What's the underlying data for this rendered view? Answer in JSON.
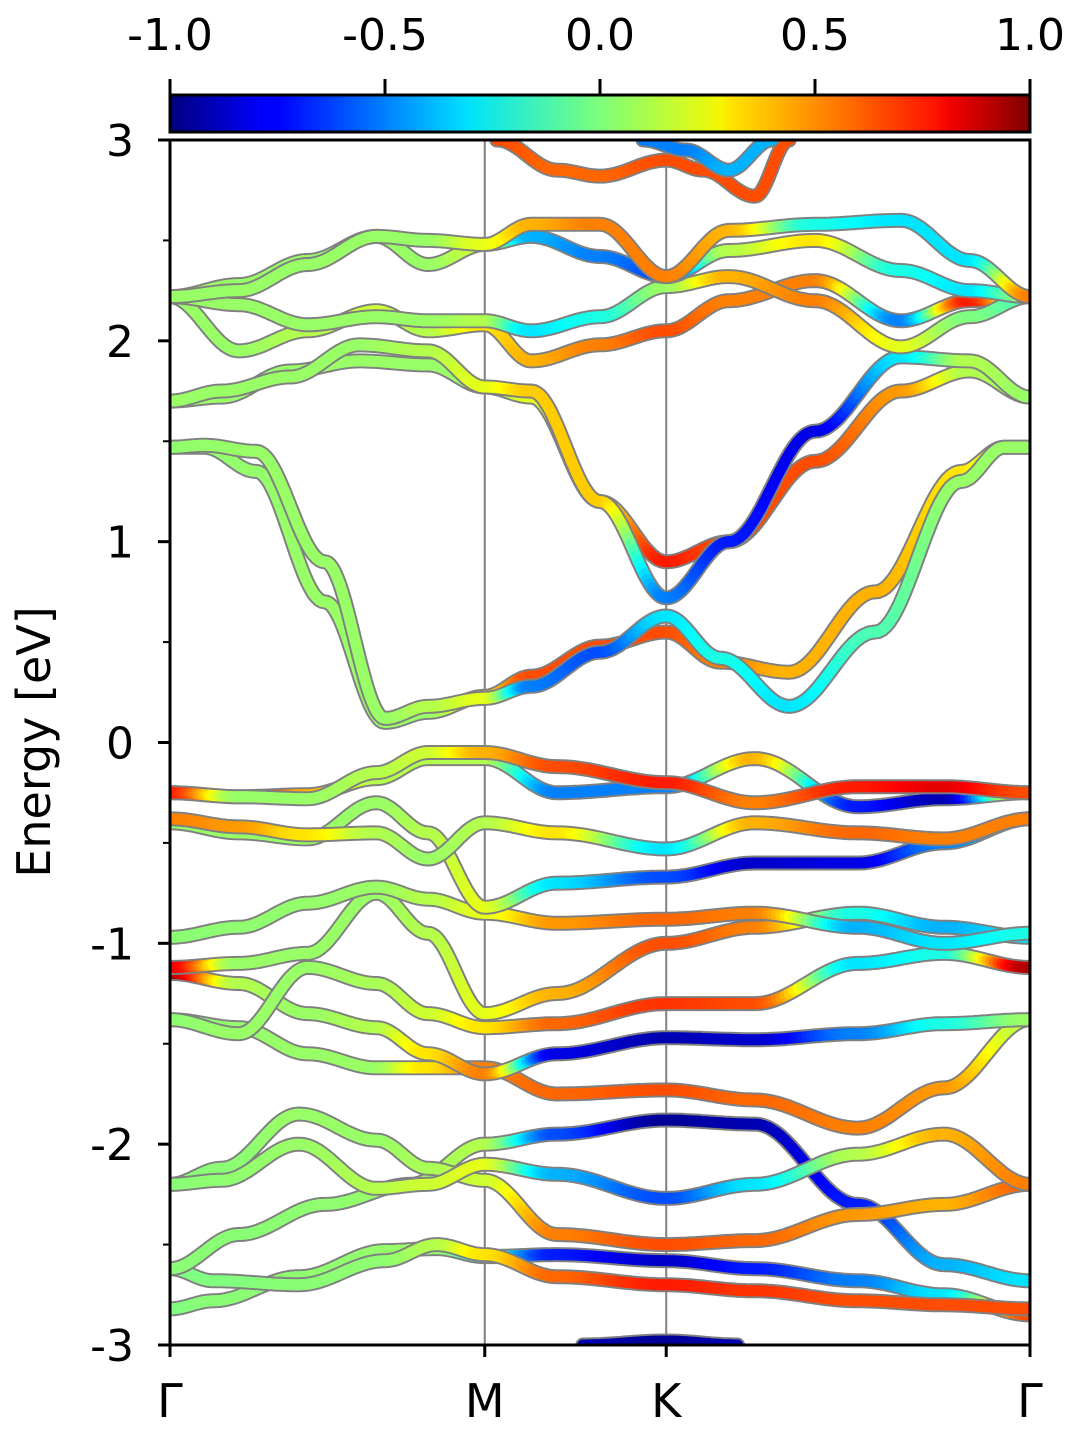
{
  "chart_data": {
    "type": "line",
    "ylabel": "Energy [eV]",
    "ylim": [
      -3,
      3
    ],
    "y_major_ticks": [
      -3,
      -2,
      -1,
      0,
      1,
      2,
      3
    ],
    "y_tick_labels": [
      "-3",
      "-2",
      "-1",
      "0",
      "1",
      "2",
      "3"
    ],
    "y_minor_ticks": [
      -2.5,
      -1.5,
      -0.5,
      0.5,
      1.5,
      2.5
    ],
    "x_ticks": [
      {
        "label": "Γ",
        "pos": 0.0
      },
      {
        "label": "M",
        "pos": 0.366
      },
      {
        "label": "K",
        "pos": 0.577
      },
      {
        "label": "Γ",
        "pos": 1.0
      }
    ],
    "colorbar": {
      "colormap": "jet",
      "range": [
        -1.0,
        1.0
      ],
      "ticks": [
        -1.0,
        -0.5,
        0.0,
        0.5,
        1.0
      ],
      "tick_labels": [
        "-1.0",
        "-0.5",
        "0.0",
        "0.5",
        "1.0"
      ]
    },
    "colors": {
      "band_outline": "#808080",
      "symmetry_line": "#808080"
    },
    "series": [
      {
        "x": [
          0,
          0.05,
          0.15,
          0.25,
          0.31,
          0.366,
          0.45,
          0.577,
          0.68,
          0.8,
          0.9,
          1.0
        ],
        "y": [
          -2.82,
          -2.78,
          -2.66,
          -2.53,
          -2.52,
          -2.56,
          -2.55,
          -2.58,
          -2.62,
          -2.68,
          -2.75,
          -2.85
        ],
        "c": [
          0.0,
          0.02,
          0.03,
          0.04,
          0.05,
          -0.2,
          -0.7,
          -0.85,
          -0.7,
          -0.5,
          -0.3,
          0.6
        ]
      },
      {
        "x": [
          0,
          0.05,
          0.15,
          0.25,
          0.31,
          0.366,
          0.45,
          0.577,
          0.68,
          0.8,
          0.9,
          1.0
        ],
        "y": [
          -2.62,
          -2.68,
          -2.7,
          -2.58,
          -2.5,
          -2.55,
          -2.66,
          -2.7,
          -2.73,
          -2.78,
          -2.8,
          -2.82
        ],
        "c": [
          0.0,
          0.0,
          0.02,
          0.03,
          0.1,
          0.3,
          0.55,
          0.7,
          0.65,
          0.6,
          0.6,
          0.6
        ]
      },
      {
        "x": [
          0,
          0.08,
          0.18,
          0.28,
          0.366,
          0.45,
          0.577,
          0.68,
          0.8,
          0.9,
          1.0
        ],
        "y": [
          -2.62,
          -2.45,
          -2.3,
          -2.2,
          -2.0,
          -1.95,
          -1.88,
          -1.9,
          -2.3,
          -2.6,
          -2.68
        ],
        "c": [
          0.02,
          0.02,
          0.03,
          0.05,
          0.1,
          -0.6,
          -0.95,
          -0.9,
          -0.7,
          -0.4,
          -0.3
        ]
      },
      {
        "x": [
          0,
          0.06,
          0.15,
          0.24,
          0.3,
          0.366,
          0.45,
          0.577,
          0.68,
          0.8,
          0.9,
          1.0
        ],
        "y": [
          -2.2,
          -2.12,
          -1.85,
          -1.98,
          -2.12,
          -2.18,
          -2.45,
          -2.5,
          -2.48,
          -2.35,
          -2.3,
          -2.2
        ],
        "c": [
          0.02,
          0.02,
          0.05,
          0.05,
          0.08,
          0.15,
          0.5,
          0.6,
          0.55,
          0.45,
          0.4,
          0.55
        ]
      },
      {
        "x": [
          0,
          0.06,
          0.15,
          0.24,
          0.3,
          0.366,
          0.45,
          0.577,
          0.68,
          0.8,
          0.9,
          1.0
        ],
        "y": [
          -2.2,
          -2.18,
          -2.0,
          -2.22,
          -2.2,
          -2.1,
          -2.15,
          -2.27,
          -2.2,
          -2.05,
          -1.95,
          -2.2
        ],
        "c": [
          0.02,
          0.03,
          0.05,
          0.1,
          0.15,
          0.2,
          -0.4,
          -0.6,
          -0.3,
          0.1,
          0.4,
          0.5
        ]
      },
      {
        "x": [
          0,
          0.08,
          0.16,
          0.24,
          0.3,
          0.366,
          0.45,
          0.577,
          0.68,
          0.8,
          0.9,
          1.0
        ],
        "y": [
          -1.38,
          -1.42,
          -1.55,
          -1.62,
          -1.62,
          -1.62,
          -1.75,
          -1.73,
          -1.78,
          -1.92,
          -1.72,
          -1.38
        ],
        "c": [
          0.03,
          0.04,
          0.05,
          0.05,
          0.3,
          0.5,
          0.55,
          0.6,
          0.55,
          0.5,
          0.45,
          0.1
        ]
      },
      {
        "x": [
          0,
          0.08,
          0.16,
          0.24,
          0.3,
          0.366,
          0.45,
          0.577,
          0.68,
          0.8,
          0.9,
          1.0
        ],
        "y": [
          -1.15,
          -1.2,
          -1.35,
          -1.42,
          -1.55,
          -1.65,
          -1.55,
          -1.47,
          -1.48,
          -1.45,
          -1.4,
          -1.38
        ],
        "c": [
          0.9,
          0.1,
          0.05,
          0.1,
          0.3,
          0.5,
          -0.8,
          -0.9,
          -0.85,
          -0.5,
          -0.2,
          0.05
        ]
      },
      {
        "x": [
          0,
          0.08,
          0.16,
          0.24,
          0.3,
          0.366,
          0.45,
          0.577,
          0.68,
          0.8,
          0.9,
          1.0
        ],
        "y": [
          -1.38,
          -1.45,
          -1.12,
          -1.2,
          -1.35,
          -1.42,
          -1.4,
          -1.3,
          -1.3,
          -1.1,
          -1.05,
          -1.12
        ],
        "c": [
          0.03,
          0.05,
          0.05,
          0.08,
          0.15,
          0.3,
          0.55,
          0.65,
          0.6,
          -0.3,
          -0.2,
          0.9
        ]
      },
      {
        "x": [
          0,
          0.08,
          0.16,
          0.24,
          0.3,
          0.366,
          0.45,
          0.577,
          0.68,
          0.8,
          0.9,
          1.0
        ],
        "y": [
          -1.12,
          -1.1,
          -1.05,
          -0.75,
          -0.95,
          -1.35,
          -1.25,
          -1.0,
          -0.92,
          -0.85,
          -0.92,
          -0.97
        ],
        "c": [
          0.8,
          0.05,
          0.05,
          0.05,
          0.1,
          0.2,
          0.4,
          0.6,
          0.5,
          -0.2,
          -0.4,
          -0.3
        ]
      },
      {
        "x": [
          0,
          0.08,
          0.16,
          0.24,
          0.3,
          0.366,
          0.45,
          0.577,
          0.68,
          0.8,
          0.9,
          1.0
        ],
        "y": [
          -0.97,
          -0.92,
          -0.8,
          -0.72,
          -0.78,
          -0.85,
          -0.9,
          -0.88,
          -0.85,
          -0.92,
          -1.0,
          -0.95
        ],
        "c": [
          0.02,
          0.03,
          0.04,
          0.05,
          0.1,
          0.2,
          0.45,
          0.55,
          0.5,
          -0.4,
          -0.3,
          -0.2
        ]
      },
      {
        "x": [
          0,
          0.08,
          0.16,
          0.24,
          0.3,
          0.366,
          0.45,
          0.577,
          0.68,
          0.8,
          0.9,
          1.0
        ],
        "y": [
          -0.4,
          -0.45,
          -0.48,
          -0.3,
          -0.45,
          -0.82,
          -0.7,
          -0.67,
          -0.6,
          -0.6,
          -0.5,
          -0.38
        ],
        "c": [
          0.04,
          0.05,
          0.05,
          0.05,
          0.1,
          0.2,
          -0.3,
          -0.6,
          -0.85,
          -0.8,
          -0.5,
          -0.3
        ]
      },
      {
        "x": [
          0,
          0.08,
          0.16,
          0.24,
          0.3,
          0.366,
          0.45,
          0.577,
          0.68,
          0.8,
          0.9,
          1.0
        ],
        "y": [
          -0.38,
          -0.42,
          -0.46,
          -0.45,
          -0.58,
          -0.4,
          -0.45,
          -0.53,
          -0.4,
          -0.45,
          -0.48,
          -0.38
        ],
        "c": [
          0.5,
          0.45,
          0.3,
          0.1,
          0.05,
          0.1,
          0.3,
          -0.3,
          0.4,
          0.55,
          0.5,
          0.5
        ]
      },
      {
        "x": [
          0,
          0.08,
          0.16,
          0.24,
          0.3,
          0.366,
          0.45,
          0.577,
          0.68,
          0.8,
          0.9,
          1.0
        ],
        "y": [
          -0.25,
          -0.27,
          -0.26,
          -0.18,
          -0.08,
          -0.08,
          -0.25,
          -0.22,
          -0.08,
          -0.32,
          -0.28,
          -0.25
        ],
        "c": [
          0.8,
          0.9,
          0.4,
          0.1,
          0.1,
          0.1,
          -0.5,
          -0.5,
          0.4,
          -0.7,
          -0.9,
          0.4
        ]
      },
      {
        "x": [
          0,
          0.08,
          0.16,
          0.24,
          0.3,
          0.366,
          0.45,
          0.577,
          0.68,
          0.8,
          0.9,
          1.0
        ],
        "y": [
          -0.25,
          -0.27,
          -0.28,
          -0.15,
          -0.05,
          -0.05,
          -0.12,
          -0.2,
          -0.3,
          -0.22,
          -0.22,
          -0.25
        ],
        "c": [
          0.7,
          0.05,
          0.05,
          0.1,
          0.15,
          0.4,
          0.6,
          0.7,
          0.5,
          0.7,
          0.8,
          0.6
        ]
      },
      {
        "x": [
          0,
          0.04,
          0.1,
          0.18,
          0.25,
          0.3,
          0.366,
          0.42,
          0.5,
          0.577,
          0.64,
          0.72,
          0.82,
          0.92,
          0.97,
          1.0
        ],
        "y": [
          1.47,
          1.47,
          1.35,
          0.7,
          0.1,
          0.15,
          0.23,
          0.33,
          0.48,
          0.55,
          0.4,
          0.35,
          0.75,
          1.35,
          1.47,
          1.47
        ],
        "c": [
          0.03,
          0.03,
          0.04,
          0.05,
          0.05,
          0.05,
          0.3,
          0.6,
          0.6,
          0.6,
          0.5,
          0.4,
          0.4,
          0.3,
          0.1,
          0.05
        ]
      },
      {
        "x": [
          0,
          0.04,
          0.1,
          0.18,
          0.25,
          0.3,
          0.366,
          0.42,
          0.5,
          0.577,
          0.64,
          0.72,
          0.82,
          0.92,
          0.97,
          1.0
        ],
        "y": [
          1.47,
          1.48,
          1.45,
          0.9,
          0.12,
          0.18,
          0.22,
          0.28,
          0.45,
          0.63,
          0.42,
          0.18,
          0.55,
          1.3,
          1.47,
          1.47
        ],
        "c": [
          0.03,
          0.04,
          0.05,
          0.05,
          0.05,
          0.1,
          0.2,
          -0.5,
          -0.6,
          -0.3,
          -0.2,
          -0.3,
          -0.1,
          0.05,
          0.05,
          0.05
        ]
      },
      {
        "x": [
          0,
          0.06,
          0.14,
          0.22,
          0.3,
          0.366,
          0.42,
          0.5,
          0.577,
          0.65,
          0.75,
          0.85,
          0.93,
          1.0
        ],
        "y": [
          1.7,
          1.72,
          1.85,
          1.9,
          1.88,
          1.77,
          1.72,
          1.2,
          0.9,
          1.0,
          1.4,
          1.75,
          1.85,
          1.72
        ],
        "c": [
          0.05,
          0.05,
          0.05,
          0.05,
          0.05,
          0.05,
          0.2,
          0.3,
          0.7,
          0.6,
          0.6,
          0.45,
          0.1,
          0.05
        ]
      },
      {
        "x": [
          0,
          0.06,
          0.14,
          0.22,
          0.3,
          0.366,
          0.42,
          0.5,
          0.577,
          0.65,
          0.75,
          0.85,
          0.93,
          1.0
        ],
        "y": [
          1.7,
          1.75,
          1.82,
          1.98,
          1.95,
          1.77,
          1.75,
          1.2,
          0.72,
          1.0,
          1.55,
          1.92,
          1.9,
          1.72
        ],
        "c": [
          0.05,
          0.05,
          0.05,
          0.05,
          0.1,
          0.2,
          0.35,
          0.35,
          -0.5,
          -0.7,
          -0.8,
          -0.3,
          0.1,
          0.05
        ]
      },
      {
        "x": [
          0,
          0.08,
          0.16,
          0.24,
          0.3,
          0.366,
          0.42,
          0.5,
          0.577,
          0.65,
          0.75,
          0.85,
          0.93,
          1.0
        ],
        "y": [
          2.22,
          1.95,
          2.05,
          2.15,
          2.05,
          2.08,
          1.9,
          1.98,
          2.05,
          2.2,
          2.3,
          2.1,
          2.2,
          2.22
        ],
        "c": [
          0.05,
          0.05,
          0.1,
          0.15,
          0.1,
          0.3,
          0.4,
          0.5,
          0.6,
          0.5,
          0.5,
          -0.5,
          0.7,
          0.05
        ]
      },
      {
        "x": [
          0,
          0.08,
          0.16,
          0.24,
          0.3,
          0.366,
          0.42,
          0.5,
          0.577,
          0.65,
          0.75,
          0.85,
          0.93,
          1.0
        ],
        "y": [
          2.22,
          2.18,
          2.08,
          2.12,
          2.1,
          2.1,
          2.05,
          2.12,
          2.27,
          2.32,
          2.2,
          1.97,
          2.12,
          2.22
        ],
        "c": [
          0.05,
          0.05,
          0.05,
          0.05,
          0.05,
          0.1,
          -0.3,
          -0.2,
          0.05,
          0.4,
          0.5,
          0.2,
          0.0,
          -0.1
        ]
      },
      {
        "x": [
          0,
          0.08,
          0.16,
          0.24,
          0.3,
          0.366,
          0.42,
          0.5,
          0.577,
          0.65,
          0.75,
          0.85,
          0.93,
          1.0
        ],
        "y": [
          2.22,
          2.28,
          2.4,
          2.52,
          2.38,
          2.48,
          2.52,
          2.42,
          2.32,
          2.45,
          2.5,
          2.35,
          2.25,
          2.22
        ],
        "c": [
          0.05,
          0.05,
          0.05,
          0.05,
          0.05,
          0.15,
          -0.4,
          -0.5,
          -0.6,
          0.1,
          0.3,
          -0.2,
          -0.3,
          0.05
        ]
      },
      {
        "x": [
          0,
          0.08,
          0.16,
          0.24,
          0.3,
          0.366,
          0.42,
          0.5,
          0.577,
          0.65,
          0.75,
          0.85,
          0.93,
          1.0
        ],
        "y": [
          2.22,
          2.25,
          2.38,
          2.52,
          2.5,
          2.48,
          2.58,
          2.58,
          2.32,
          2.55,
          2.58,
          2.6,
          2.4,
          2.22
        ],
        "c": [
          0.05,
          0.05,
          0.05,
          0.05,
          0.05,
          0.2,
          0.4,
          0.5,
          0.5,
          0.4,
          -0.2,
          -0.3,
          -0.3,
          0.5
        ]
      },
      {
        "x": [
          0.38,
          0.45,
          0.5,
          0.577,
          0.62,
          0.68,
          0.72
        ],
        "y": [
          3.0,
          2.85,
          2.82,
          2.9,
          2.85,
          2.72,
          3.0
        ],
        "c": [
          0.6,
          0.55,
          0.55,
          0.6,
          0.6,
          0.6,
          0.6
        ]
      },
      {
        "x": [
          0.55,
          0.6,
          0.65,
          0.7
        ],
        "y": [
          3.0,
          2.95,
          2.85,
          3.0
        ],
        "c": [
          -0.5,
          -0.5,
          -0.4,
          -0.4
        ]
      },
      {
        "x": [
          0.48,
          0.577,
          0.66
        ],
        "y": [
          -3.0,
          -2.98,
          -3.0
        ],
        "c": [
          -0.9,
          -0.95,
          -0.9
        ]
      }
    ]
  }
}
